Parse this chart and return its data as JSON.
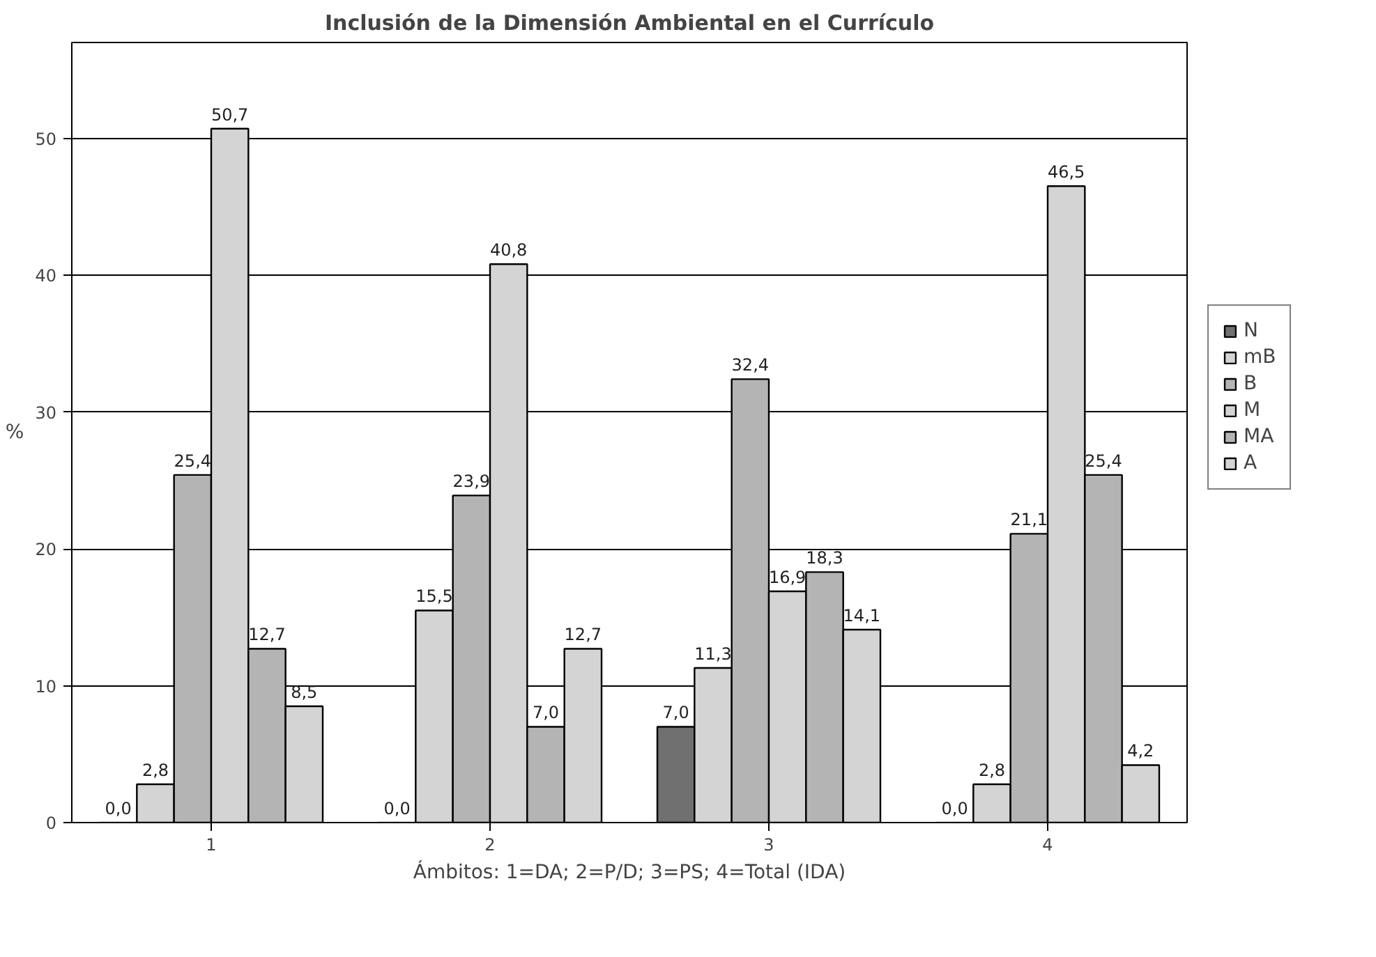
{
  "chart_data": {
    "type": "bar",
    "title": "Inclusión de la Dimensión Ambiental en el Currículo",
    "xlabel": "Ámbitos: 1=DA; 2=P/D; 3=PS; 4=Total (IDA)",
    "ylabel": "%",
    "categories": [
      "1",
      "2",
      "3",
      "4"
    ],
    "series": [
      {
        "name": "N",
        "color": "#707070",
        "values": [
          0.0,
          0.0,
          7.0,
          0.0
        ],
        "value_labels": [
          "0,0",
          "0,0",
          "7,0",
          "0,0"
        ]
      },
      {
        "name": "mB",
        "color": "#d4d4d4",
        "values": [
          2.8,
          15.5,
          11.3,
          2.8
        ],
        "value_labels": [
          "2,8",
          "15,5",
          "11,3",
          "2,8"
        ]
      },
      {
        "name": "B",
        "color": "#b4b4b4",
        "values": [
          25.4,
          23.9,
          32.4,
          21.1
        ],
        "value_labels": [
          "25,4",
          "23,9",
          "32,4",
          "21,1"
        ]
      },
      {
        "name": "M",
        "color": "#d4d4d4",
        "values": [
          50.7,
          40.8,
          16.9,
          46.5
        ],
        "value_labels": [
          "50,7",
          "40,8",
          "16,9",
          "46,5"
        ]
      },
      {
        "name": "MA",
        "color": "#b4b4b4",
        "values": [
          12.7,
          7.0,
          18.3,
          25.4
        ],
        "value_labels": [
          "12,7",
          "7,0",
          "18,3",
          "25,4"
        ]
      },
      {
        "name": "A",
        "color": "#d4d4d4",
        "values": [
          8.5,
          12.7,
          14.1,
          4.2
        ],
        "value_labels": [
          "8,5",
          "12,7",
          "14,1",
          "4,2"
        ]
      }
    ],
    "ylim": [
      0,
      57
    ],
    "yticks": [
      0,
      10,
      20,
      30,
      40,
      50
    ],
    "grid": "y",
    "legend": "right"
  }
}
